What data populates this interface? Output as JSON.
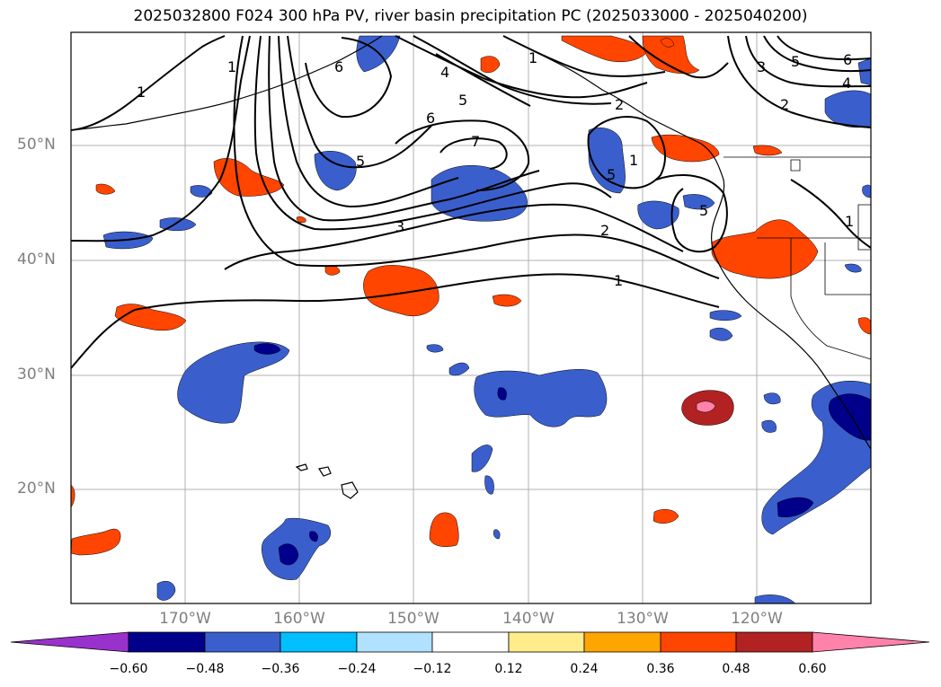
{
  "title": "2025032800 F024 300 hPa PV, river basin precipitation PC (2025033000 - 2025040200)",
  "lat_labels": [
    "50°N",
    "40°N",
    "30°N",
    "20°N"
  ],
  "lon_labels": [
    "170°W",
    "160°W",
    "150°W",
    "140°W",
    "130°W",
    "120°W"
  ],
  "contour_labels": [
    "1",
    "1",
    "1",
    "2",
    "3",
    "4",
    "5",
    "6",
    "7",
    "5",
    "6",
    "5",
    "2",
    "1",
    "3",
    "4",
    "5",
    "6",
    "1",
    "2",
    "5",
    "1"
  ],
  "colorbar": {
    "ticks": [
      "−0.60",
      "−0.48",
      "−0.36",
      "−0.24",
      "−0.12",
      "0.12",
      "0.24",
      "0.36",
      "0.48",
      "0.60"
    ],
    "colors": [
      "#9932cc",
      "#00008b",
      "#3a5fcd",
      "#00bfff",
      "#b0e2ff",
      "#ffffff",
      "#ffec8b",
      "#ffa500",
      "#ff4500",
      "#b22222",
      "#ff82ab"
    ]
  }
}
